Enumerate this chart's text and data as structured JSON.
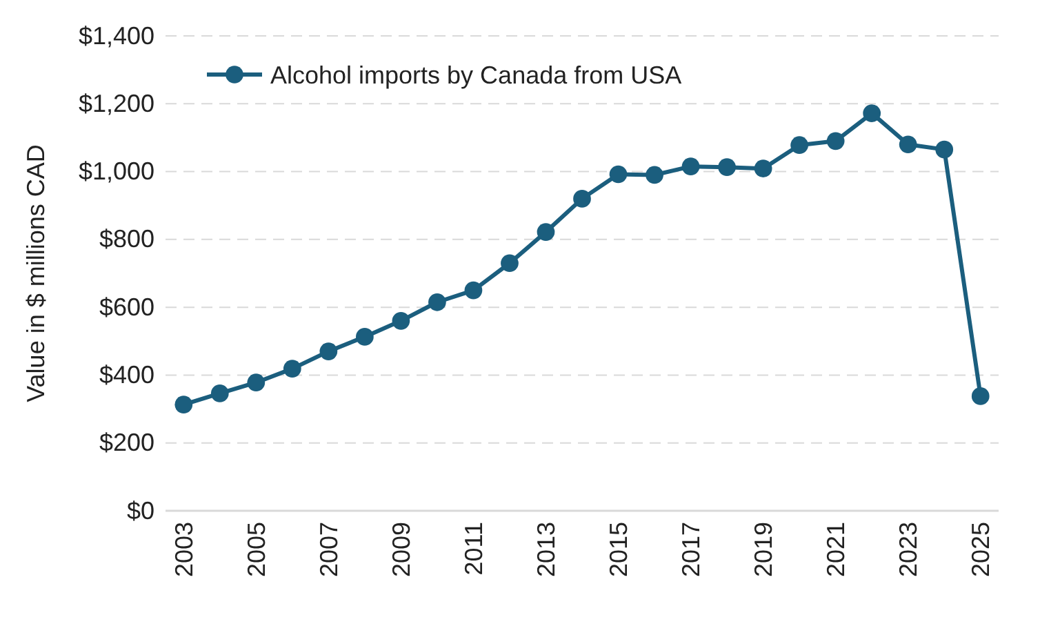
{
  "chart_data": {
    "type": "line",
    "ylabel": "Value in $ millions CAD",
    "categories": [
      "2003",
      null,
      "2005",
      null,
      "2007",
      null,
      "2009",
      null,
      "2011",
      null,
      "2013",
      null,
      "2015",
      null,
      "2017",
      null,
      "2019",
      null,
      "2021",
      null,
      "2023",
      null,
      "2025"
    ],
    "series": [
      {
        "name": "Alcohol imports by Canada from USA",
        "color": "#1b5e7e",
        "values": [
          313,
          346,
          378,
          419,
          470,
          513,
          560,
          615,
          650,
          730,
          822,
          920,
          992,
          990,
          1015,
          1013,
          1009,
          1078,
          1090,
          1172,
          1080,
          1065,
          338
        ]
      }
    ],
    "ylim": [
      0,
      1400
    ],
    "yticks": [
      {
        "value": 0,
        "label": "$0"
      },
      {
        "value": 200,
        "label": "$200"
      },
      {
        "value": 400,
        "label": "$400"
      },
      {
        "value": 600,
        "label": "$600"
      },
      {
        "value": 800,
        "label": "$800"
      },
      {
        "value": 1000,
        "label": "$1,000"
      },
      {
        "value": 1200,
        "label": "$1,200"
      },
      {
        "value": 1400,
        "label": "$1,400"
      }
    ],
    "grid": "y",
    "legend": "top left",
    "marker": "circle",
    "line_style": "solid"
  }
}
